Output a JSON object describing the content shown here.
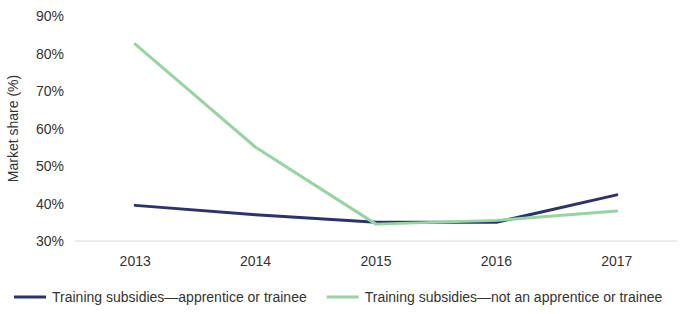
{
  "chart_data": {
    "type": "line",
    "y_label": "Market share (%)",
    "categories": [
      "2013",
      "2014",
      "2015",
      "2016",
      "2017"
    ],
    "series": [
      {
        "name": "Training subsidies—apprentice or trainee",
        "color": "#2b3270",
        "values": [
          39.5,
          37,
          35,
          35,
          42.3
        ]
      },
      {
        "name": "Training subsidies—not an apprentice or trainee",
        "color": "#95d5a0",
        "values": [
          82.5,
          55,
          34.5,
          35.5,
          38
        ]
      }
    ],
    "ylim": [
      30,
      90
    ],
    "yticks": [
      {
        "value": 30,
        "label": "30%"
      },
      {
        "value": 40,
        "label": "40%"
      },
      {
        "value": 50,
        "label": "50%"
      },
      {
        "value": 60,
        "label": "60%"
      },
      {
        "value": 70,
        "label": "70%"
      },
      {
        "value": 80,
        "label": "80%"
      },
      {
        "value": 90,
        "label": "90%"
      }
    ],
    "grid": false,
    "legend": "bottom"
  }
}
